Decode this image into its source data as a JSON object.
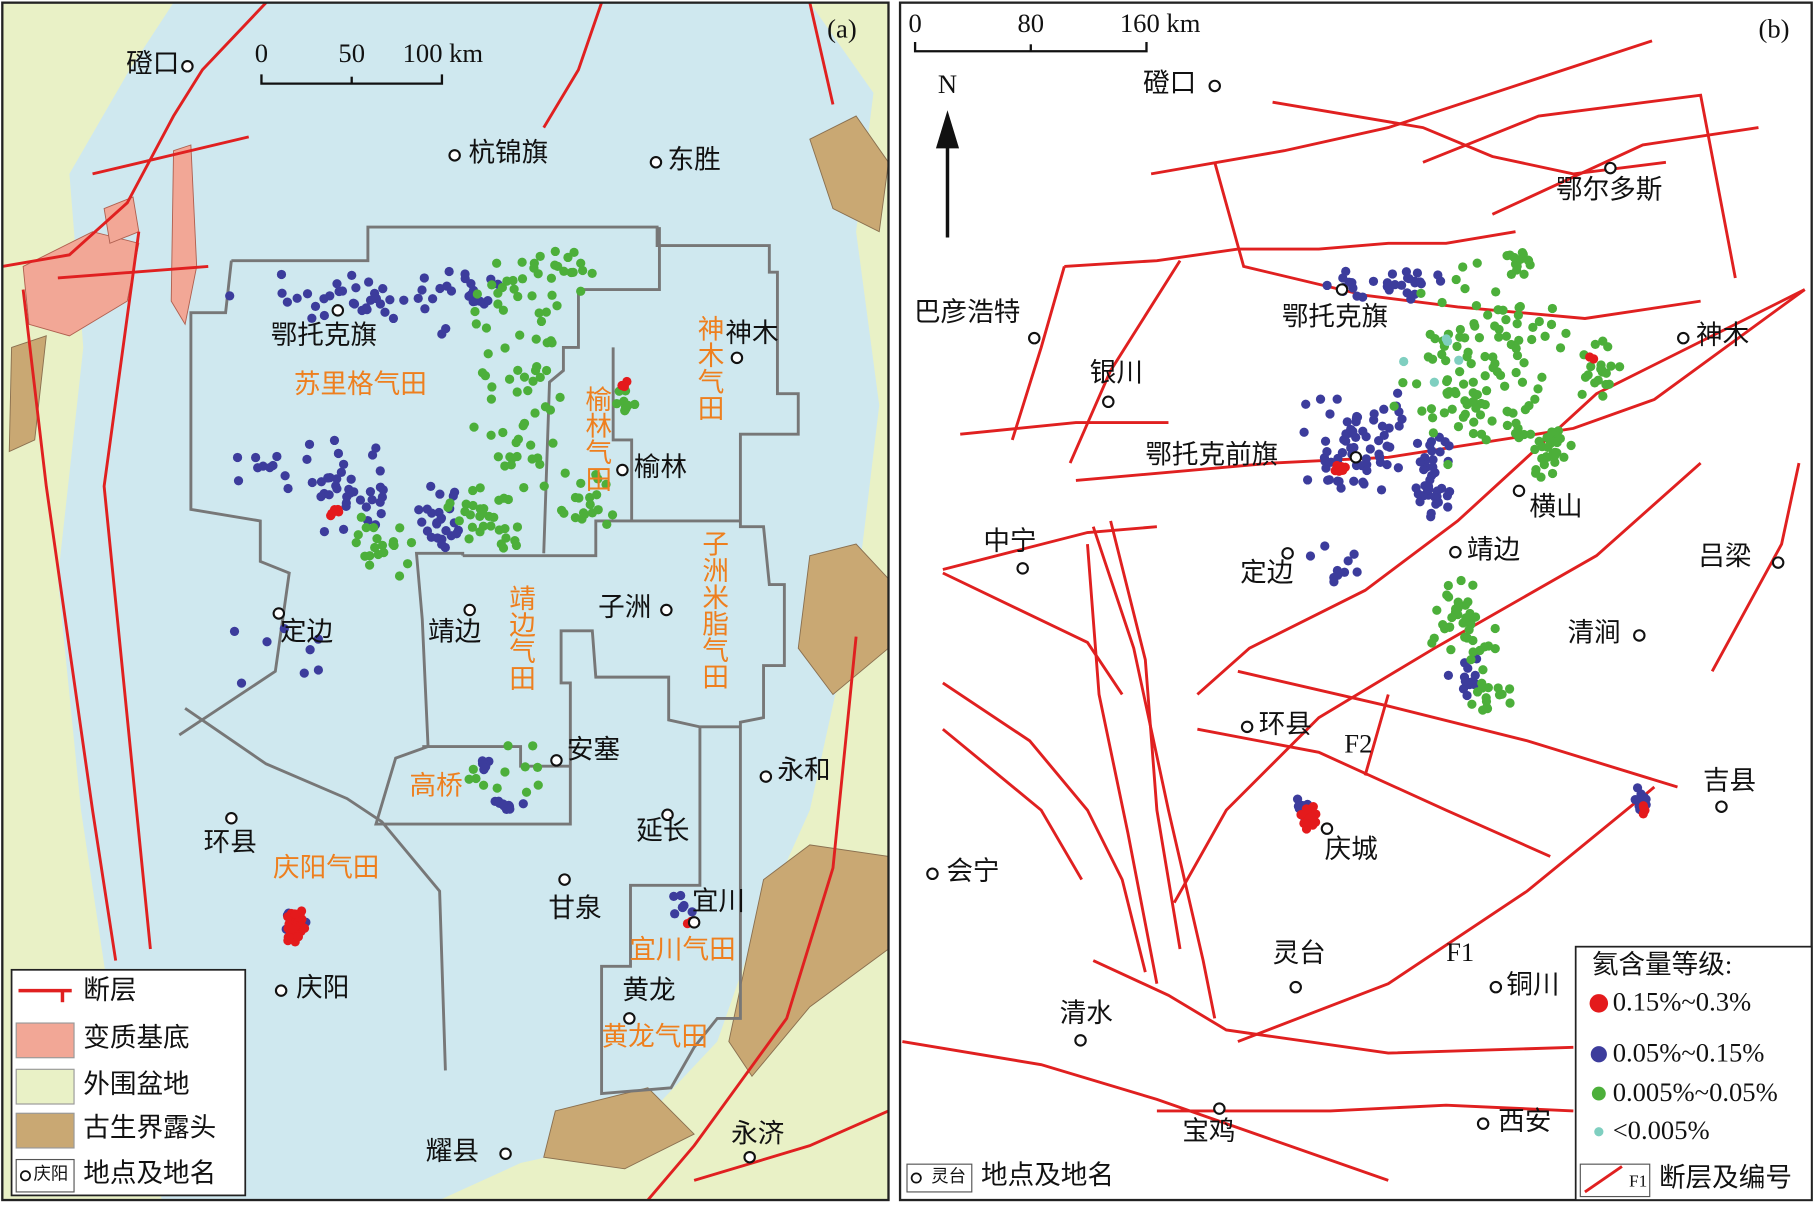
{
  "panel_a": {
    "label": "(a)",
    "scale": [
      "0",
      "50",
      "100 km"
    ],
    "places": [
      "磴口",
      "杭锦旗",
      "东胜",
      "鄂托克旗",
      "神木",
      "定边",
      "靖边",
      "子洲",
      "榆林",
      "安塞",
      "永和",
      "延长",
      "环县",
      "甘泉",
      "宜川",
      "庆阳",
      "黄龙",
      "耀县",
      "永济"
    ],
    "gas_fields": [
      "苏里格气田",
      "榆林气田",
      "神木气田",
      "靖边气田",
      "子洲米脂气田",
      "高桥",
      "庆阳气田",
      "宜川气田",
      "黄龙气田"
    ],
    "legend": {
      "items": [
        "断层",
        "变质基底",
        "外围盆地",
        "古生界露头",
        "地点及地名"
      ],
      "icon_label": "庆阳"
    }
  },
  "panel_b": {
    "label": "(b)",
    "scale": [
      "0",
      "80",
      "160 km"
    ],
    "north": "N",
    "places": [
      "磴口",
      "鄂尔多斯",
      "巴彦浩特",
      "鄂托克旗",
      "神木",
      "银川",
      "鄂托克前旗",
      "横山",
      "中宁",
      "定边",
      "靖边",
      "吕梁",
      "清涧",
      "环县",
      "吉县",
      "庆城",
      "会宁",
      "灵台",
      "铜川",
      "清水",
      "宝鸡",
      "西安"
    ],
    "fault_labels": [
      "F1",
      "F2"
    ],
    "legend": {
      "title": "氦含量等级:",
      "levels": [
        "0.15%~0.3%",
        "0.05%~0.15%",
        "0.005%~0.05%",
        "<0.005%"
      ],
      "place_icon": "灵台",
      "place": "地点及地名",
      "fault_icon": "F1",
      "fault": "断层及编号"
    }
  }
}
